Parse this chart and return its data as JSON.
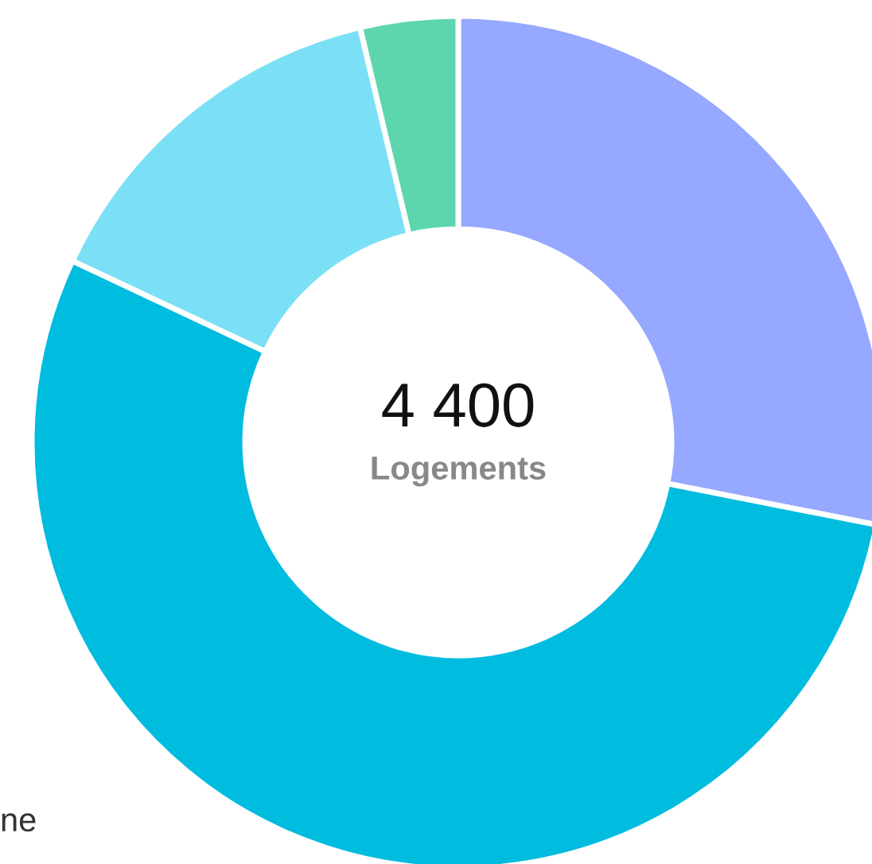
{
  "chart_data": {
    "type": "donut",
    "title": "4 400",
    "subtitle": "Logements",
    "categories": [
      null,
      null,
      null,
      null
    ],
    "values": [
      28.1,
      53.9,
      14.3,
      3.7
    ],
    "colors": [
      "#96a8ff",
      "#00bcdf",
      "#7be0f5",
      "#5dd6ad"
    ],
    "annotations": [
      "ne"
    ]
  }
}
